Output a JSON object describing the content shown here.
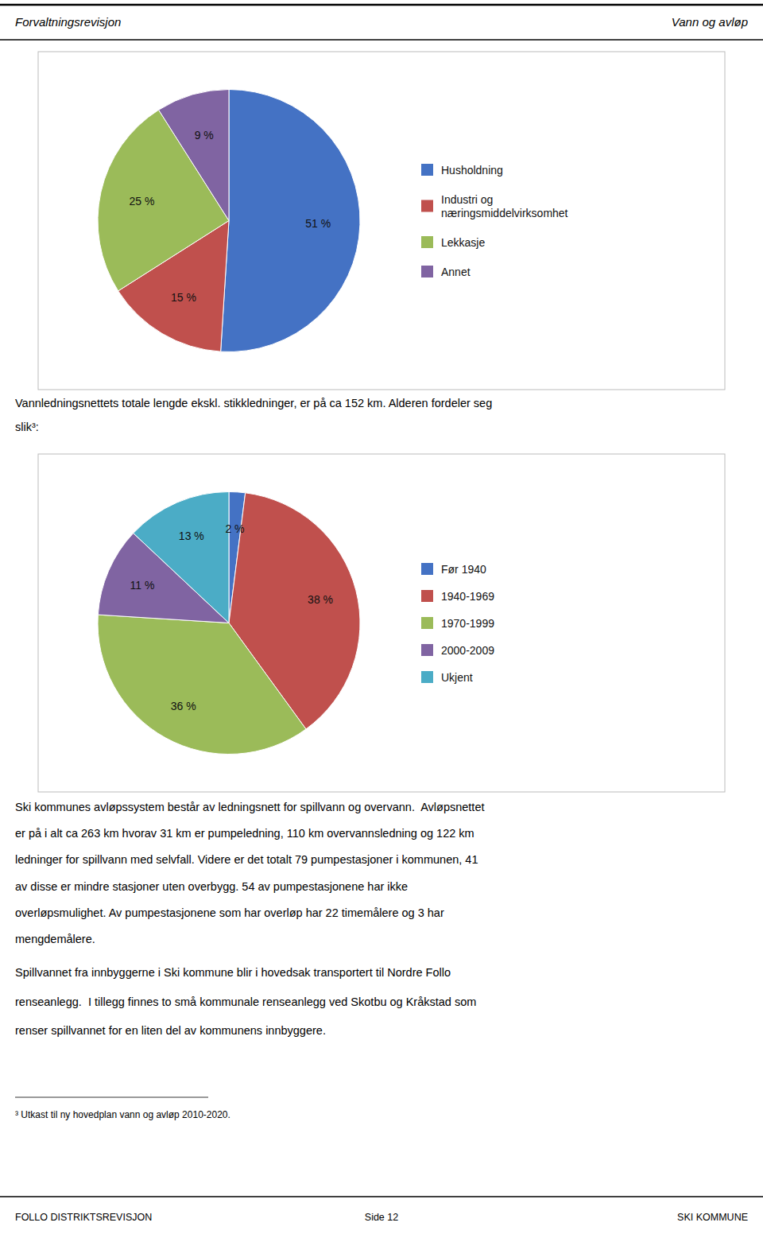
{
  "chart_data": [
    {
      "type": "pie",
      "categories": [
        "Husholdning",
        "Industri og\nnæringsmiddelvirksomhet",
        "Lekkasje",
        "Annet"
      ],
      "values": [
        51,
        15,
        25,
        9
      ],
      "value_labels": [
        "51 %",
        "15 %",
        "25 %",
        "9 %"
      ],
      "colors": [
        "#4472C4",
        "#C0504D",
        "#9BBB59",
        "#8064A2"
      ],
      "data_labels": true,
      "legend": "right"
    },
    {
      "type": "pie",
      "categories": [
        "Før 1940",
        "1940-1969",
        "1970-1999",
        "2000-2009",
        "Ukjent"
      ],
      "values": [
        2,
        38,
        36,
        11,
        13
      ],
      "value_labels": [
        "2 %",
        "38 %",
        "36 %",
        "11 %",
        "13 %"
      ],
      "colors": [
        "#4472C4",
        "#C0504D",
        "#9BBB59",
        "#8064A2",
        "#4BACC6"
      ],
      "data_labels": true,
      "legend": "right"
    }
  ],
  "header": [
    "Forvaltningsrevisjon",
    "Vann og avløp"
  ],
  "text_between": [
    "Vannledningsnettets totale lengde ekskl. stikkledninger, er på ca 152 km. Alderen fordeler seg",
    "slik³:"
  ],
  "body_text1": [
    "Ski kommunes avløpssystem består av ledningsnett for spillvann og overvann.  Avløpsnettet",
    "er på i alt ca 263 km hvorav 31 km er pumpeledning, 110 km overvannsledning og 122 km",
    "ledninger for spillvann med selvfall. Videre er det totalt 79 pumpestasjoner i kommunen, 41",
    "av disse er mindre stasjoner uten overbygg. 54 av pumpestasjonene har ikke",
    "overløpsmulighet. Av pumpestasjonene som har overløp har 22 timemålere og 3 har",
    "mengdemålere."
  ],
  "body_text2": [
    "Spillvannet fra innbyggerne i Ski kommune blir i hovedsak transportert til Nordre Follo",
    "renseanlegg.  I tillegg finnes to små kommunale renseanlegg ved Skotbu og Kråkstad som",
    "renser spillvannet for en liten del av kommunens innbyggere."
  ],
  "footnote": "³ Utkast til ny hovedplan vann og avløp 2010-2020.",
  "footer": [
    "FOLLO DISTRIKTSREVISJON",
    "Side 12",
    "SKI KOMMUNE"
  ]
}
